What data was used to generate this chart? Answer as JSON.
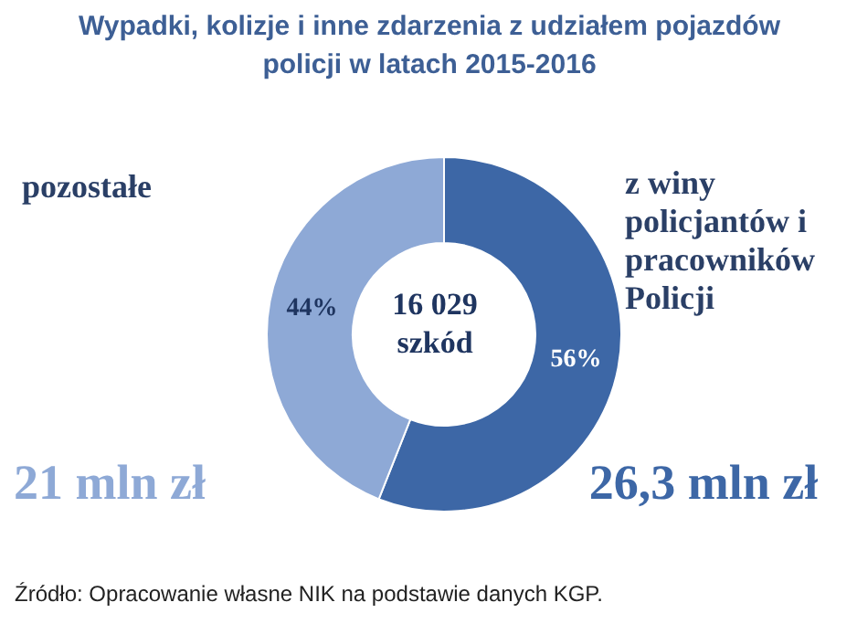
{
  "chart_data": {
    "type": "donut",
    "title": "Wypadki, kolizje i inne zdarzenia z udziałem pojazdów policji w latach 2015-2016",
    "categories": [
      "z winy policjantów i pracowników Policji",
      "pozostałe"
    ],
    "values": [
      56,
      44
    ],
    "colors": [
      "#3d67a6",
      "#8ea9d6"
    ],
    "value_labels": [
      "56%",
      "44%"
    ],
    "annotations": [
      "16 029 szkód",
      "26,3 mln zł",
      "21 mln zł",
      "Źródło: Opracowanie własne NIK na podstawie danych KGP."
    ]
  }
}
